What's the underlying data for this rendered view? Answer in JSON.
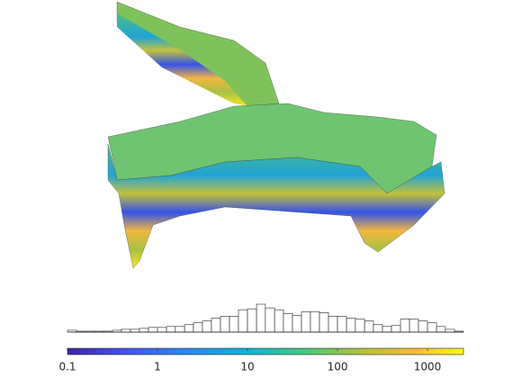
{
  "chart_data": {
    "type": "histogram",
    "bins": [
      0.1,
      0.126,
      0.158,
      0.2,
      0.251,
      0.316,
      0.398,
      0.501,
      0.631,
      0.794,
      1,
      1.26,
      1.58,
      2,
      2.51,
      3.16,
      3.98,
      5.01,
      6.31,
      7.94,
      10,
      12.6,
      15.8,
      20,
      25.1,
      31.6,
      39.8,
      50.1,
      63.1,
      79.4,
      100,
      126,
      158,
      200,
      251,
      316,
      398,
      501,
      631,
      794,
      1000,
      1260,
      1580,
      2000,
      2510
    ],
    "values": [
      2,
      1,
      1,
      1,
      1,
      2,
      3,
      3,
      4,
      5,
      5,
      6,
      6,
      8,
      10,
      12,
      15,
      17,
      17,
      24,
      25,
      30,
      26,
      24,
      20,
      18,
      22,
      22,
      21,
      17,
      17,
      15,
      14,
      12,
      8,
      6,
      7,
      14,
      14,
      12,
      10,
      6,
      3,
      1
    ],
    "xlim": [
      0.1,
      2510
    ],
    "xlog": true,
    "ylim": [
      0,
      30
    ],
    "xticks": [
      0.1,
      1,
      10,
      100,
      1000
    ]
  }
}
